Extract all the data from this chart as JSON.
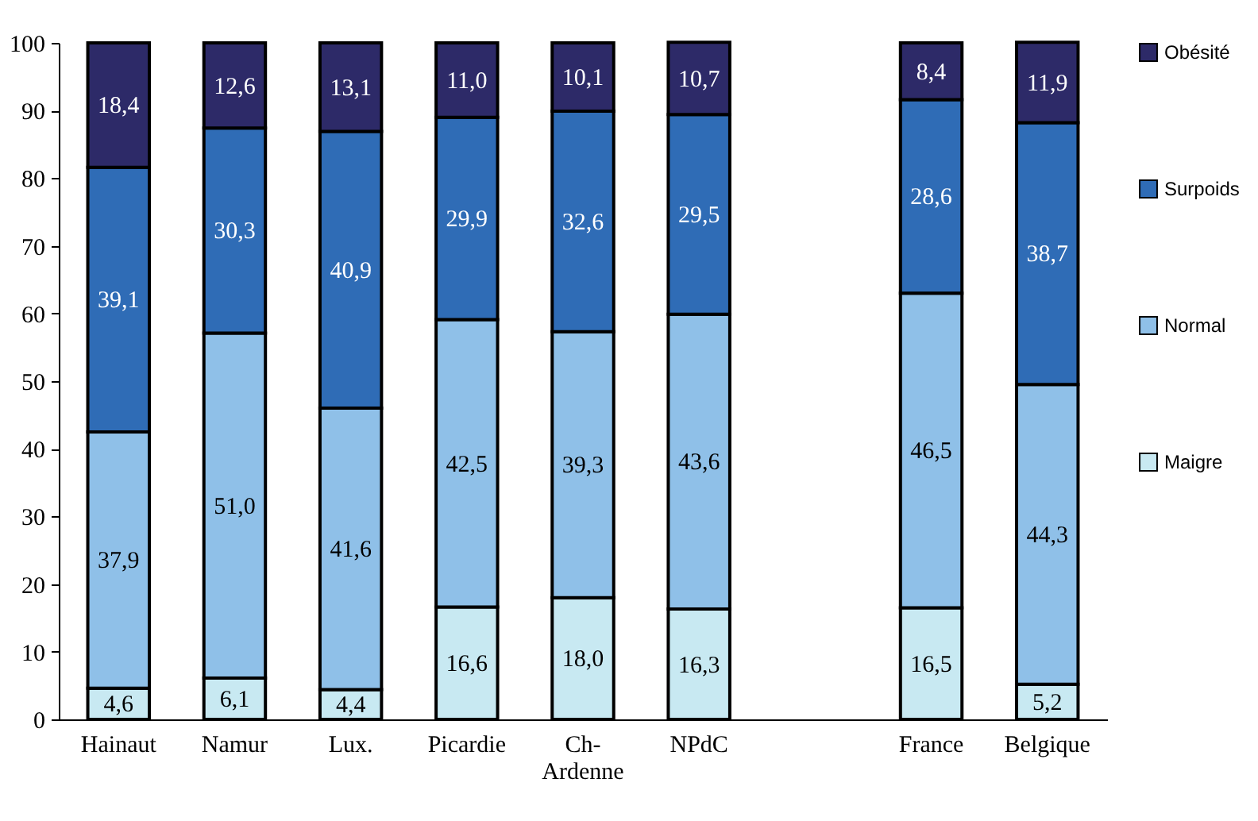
{
  "chart_data": {
    "type": "bar",
    "stacked": true,
    "categories": [
      "Hainaut",
      "Namur",
      "Lux.",
      "Picardie",
      "Ch-\nArdenne",
      "NPdC",
      null,
      "France",
      "Belgique"
    ],
    "series": [
      {
        "name": "Maigre",
        "color": "#c8e9f2",
        "values": [
          4.6,
          6.1,
          4.4,
          16.6,
          18.0,
          16.3,
          null,
          16.5,
          5.2
        ],
        "value_labels": [
          "4,6",
          "6,1",
          "4,4",
          "16,6",
          "18,0",
          "16,3",
          null,
          "16,5",
          "5,2"
        ]
      },
      {
        "name": "Normal",
        "color": "#8fc0e8",
        "values": [
          37.9,
          51.0,
          41.6,
          42.5,
          39.3,
          43.6,
          null,
          46.5,
          44.3
        ],
        "value_labels": [
          "37,9",
          "51,0",
          "41,6",
          "42,5",
          "39,3",
          "43,6",
          null,
          "46,5",
          "44,3"
        ]
      },
      {
        "name": "Surpoids",
        "color": "#2f6cb6",
        "values": [
          39.1,
          30.3,
          40.9,
          29.9,
          32.6,
          29.5,
          null,
          28.6,
          38.7
        ],
        "value_labels": [
          "39,1",
          "30,3",
          "40,9",
          "29,9",
          "32,6",
          "29,5",
          null,
          "28,6",
          "38,7"
        ]
      },
      {
        "name": "Obésité",
        "color": "#2d2a68",
        "values": [
          18.4,
          12.6,
          13.1,
          11.0,
          10.1,
          10.7,
          null,
          8.4,
          11.9
        ],
        "value_labels": [
          "18,4",
          "12,6",
          "13,1",
          "11,0",
          "10,1",
          "10,7",
          null,
          "8,4",
          "11,9"
        ]
      }
    ],
    "ylim": [
      0,
      100
    ],
    "yticks": [
      0,
      10,
      20,
      30,
      40,
      50,
      60,
      70,
      80,
      90,
      100
    ],
    "grid": false,
    "legend": "right"
  }
}
